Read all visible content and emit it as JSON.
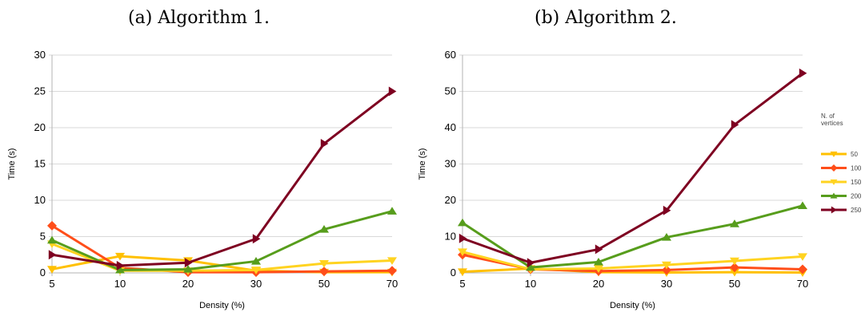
{
  "chart_data": [
    {
      "type": "line",
      "title": "(a) Algorithm 1.",
      "xlabel": "Density (%)",
      "ylabel": "Time (s)",
      "categories": [
        "5",
        "10",
        "20",
        "30",
        "50",
        "70"
      ],
      "ylim": [
        0,
        30
      ],
      "yticks": [
        0,
        5,
        10,
        15,
        20,
        25,
        30
      ],
      "grid": true,
      "series": [
        {
          "name": "50",
          "color": "#FFC000",
          "marker": "triangle-down",
          "values": [
            0.5,
            2.3,
            1.7,
            0.3,
            0.1,
            0.1
          ]
        },
        {
          "name": "100",
          "color": "#FF4E1A",
          "marker": "diamond",
          "values": [
            6.5,
            0.7,
            0.1,
            0.1,
            0.2,
            0.3
          ]
        },
        {
          "name": "150",
          "color": "#FFD320",
          "marker": "triangle-down",
          "values": [
            4.0,
            0.3,
            0.3,
            0.4,
            1.3,
            1.7
          ]
        },
        {
          "name": "200",
          "color": "#579D1C",
          "marker": "triangle-up",
          "values": [
            4.5,
            0.4,
            0.5,
            1.6,
            6.0,
            8.5
          ]
        },
        {
          "name": "250",
          "color": "#7E0021",
          "marker": "triangle-right",
          "values": [
            2.5,
            1.0,
            1.4,
            4.7,
            17.8,
            25.0
          ]
        }
      ]
    },
    {
      "type": "line",
      "title": "(b) Algorithm 2.",
      "xlabel": "Density (%)",
      "ylabel": "Time (s)",
      "categories": [
        "5",
        "10",
        "20",
        "30",
        "50",
        "70"
      ],
      "ylim": [
        0,
        60
      ],
      "yticks": [
        0,
        10,
        20,
        30,
        40,
        50,
        60
      ],
      "grid": true,
      "legend_title": "N. of vertices",
      "legend_position": "right",
      "series": [
        {
          "name": "50",
          "color": "#FFC000",
          "marker": "triangle-down",
          "values": [
            0.3,
            1.2,
            0.2,
            0.1,
            0.2,
            0.1
          ]
        },
        {
          "name": "100",
          "color": "#FF4E1A",
          "marker": "diamond",
          "values": [
            5.0,
            1.0,
            0.5,
            0.8,
            1.5,
            1.0
          ]
        },
        {
          "name": "150",
          "color": "#FFD320",
          "marker": "triangle-down",
          "values": [
            5.8,
            1.0,
            1.2,
            2.2,
            3.3,
            4.5
          ]
        },
        {
          "name": "200",
          "color": "#579D1C",
          "marker": "triangle-up",
          "values": [
            13.8,
            1.5,
            3.0,
            9.8,
            13.5,
            18.5
          ]
        },
        {
          "name": "250",
          "color": "#7E0021",
          "marker": "triangle-right",
          "values": [
            9.5,
            2.8,
            6.5,
            17.2,
            40.8,
            55.0
          ]
        }
      ]
    }
  ]
}
